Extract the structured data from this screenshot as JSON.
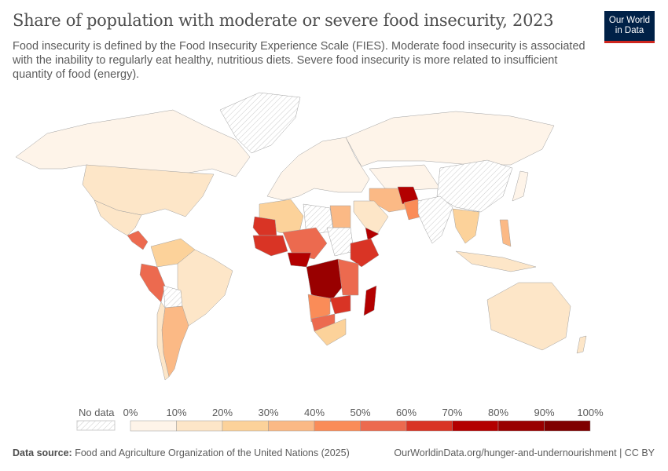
{
  "title": "Share of population with moderate or severe food insecurity, 2023",
  "subtitle": "Food insecurity is defined by the Food Insecurity Experience Scale (FIES). Moderate food insecurity is associated with the inability to regularly eat healthy, nutritious diets. Severe food insecurity is more related to insufficient quantity of food (energy).",
  "logo": "Our World in Data",
  "legend": {
    "no_data_label": "No data",
    "ticks": [
      "0%",
      "10%",
      "20%",
      "30%",
      "40%",
      "50%",
      "60%",
      "70%",
      "80%",
      "90%",
      "100%"
    ],
    "colors": [
      "#fef4e9",
      "#fde6c8",
      "#fcd29a",
      "#fbb985",
      "#fa8c58",
      "#ec6a4f",
      "#d93425",
      "#b30000",
      "#990000",
      "#7f0000"
    ],
    "no_data_color": "#e8e8e8"
  },
  "map": {
    "regions": [
      {
        "id": "canada-alaska",
        "bin": 0
      },
      {
        "id": "usa",
        "bin": 1
      },
      {
        "id": "mexico",
        "bin": 1
      },
      {
        "id": "central-america",
        "bin": 5
      },
      {
        "id": "greenland",
        "bin": null
      },
      {
        "id": "northern-south-america",
        "bin": 2
      },
      {
        "id": "brazil",
        "bin": 1
      },
      {
        "id": "peru",
        "bin": 5
      },
      {
        "id": "bolivia",
        "bin": null
      },
      {
        "id": "argentina",
        "bin": 3
      },
      {
        "id": "chile",
        "bin": 1
      },
      {
        "id": "europe",
        "bin": 0
      },
      {
        "id": "russia",
        "bin": 0
      },
      {
        "id": "central-asia",
        "bin": 0
      },
      {
        "id": "iran",
        "bin": 3
      },
      {
        "id": "afghanistan",
        "bin": 7
      },
      {
        "id": "pakistan",
        "bin": 4
      },
      {
        "id": "saudi-arabia",
        "bin": 1
      },
      {
        "id": "yemen",
        "bin": 7
      },
      {
        "id": "china",
        "bin": null
      },
      {
        "id": "india",
        "bin": null
      },
      {
        "id": "southeast-asia",
        "bin": 2
      },
      {
        "id": "indonesia",
        "bin": 1
      },
      {
        "id": "philippines",
        "bin": 3
      },
      {
        "id": "japan",
        "bin": 0
      },
      {
        "id": "australia",
        "bin": 1
      },
      {
        "id": "new-zealand",
        "bin": 1
      },
      {
        "id": "maghreb",
        "bin": 2
      },
      {
        "id": "mauritania",
        "bin": 6
      },
      {
        "id": "libya",
        "bin": null
      },
      {
        "id": "egypt",
        "bin": 3
      },
      {
        "id": "west-africa",
        "bin": 6
      },
      {
        "id": "sahel",
        "bin": 5
      },
      {
        "id": "nigeria",
        "bin": 7
      },
      {
        "id": "sudan",
        "bin": null
      },
      {
        "id": "ethiopia",
        "bin": 6
      },
      {
        "id": "dr-congo",
        "bin": 8
      },
      {
        "id": "east-africa",
        "bin": 5
      },
      {
        "id": "angola",
        "bin": 4
      },
      {
        "id": "zambia-mozambique",
        "bin": 6
      },
      {
        "id": "namibia-botswana",
        "bin": 5
      },
      {
        "id": "south-africa",
        "bin": 2
      },
      {
        "id": "madagascar",
        "bin": 7
      }
    ]
  },
  "footer": {
    "source_label": "Data source:",
    "source": "Food and Agriculture Organization of the United Nations (2025)",
    "url": "OurWorldinData.org/hunger-and-undernourishment | CC BY"
  }
}
